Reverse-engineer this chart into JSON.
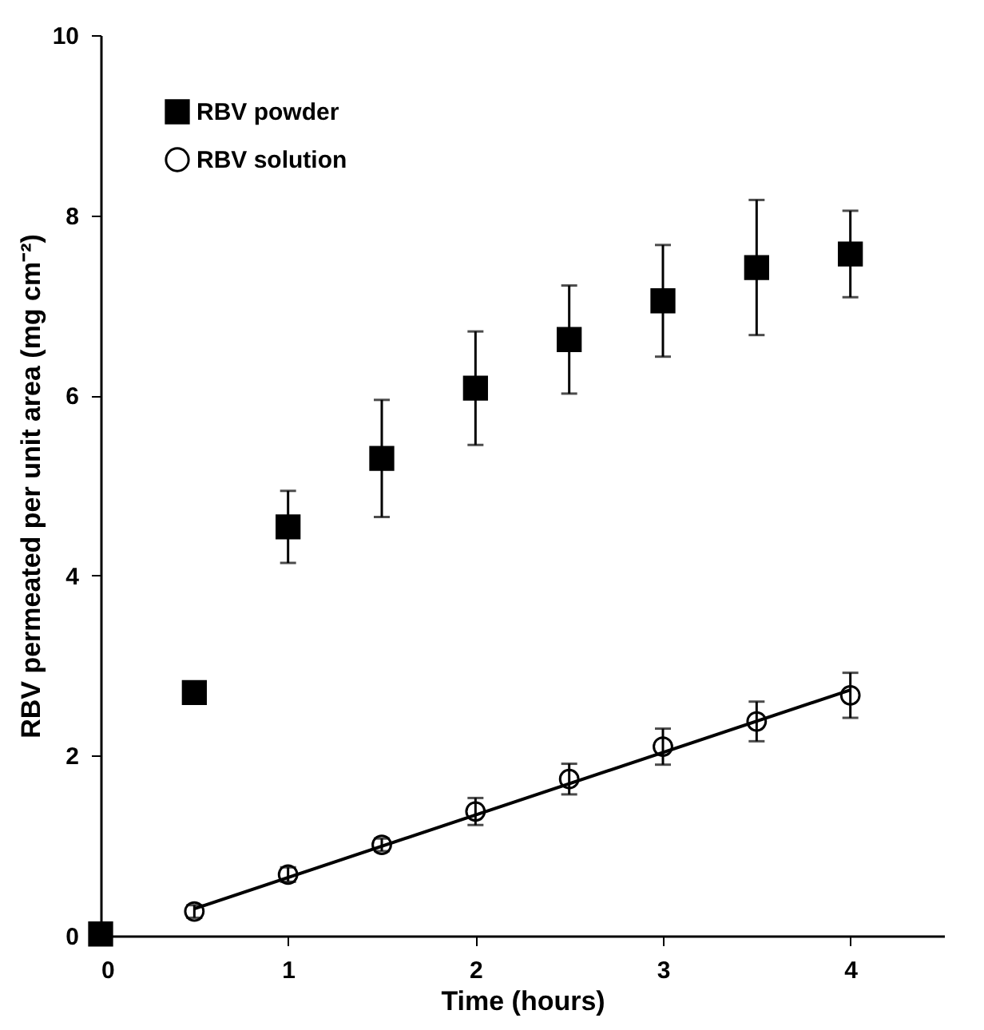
{
  "chart_data": {
    "type": "scatter",
    "xlabel": "Time (hours)",
    "ylabel": "RBV permeated per unit area (mg cm⁻²)",
    "xlim": [
      0,
      4.5
    ],
    "xticks": [
      0,
      1,
      2,
      3,
      4
    ],
    "ylim": [
      0,
      10
    ],
    "yticks": [
      0,
      2,
      4,
      6,
      8,
      10
    ],
    "grid": false,
    "legend": "top left",
    "series": [
      {
        "name": "RBV powder",
        "color": "#000000",
        "marker": "square",
        "x": [
          0,
          0.5,
          1,
          1.5,
          2,
          2.5,
          3,
          3.5,
          4
        ],
        "values": [
          0.02,
          2.7,
          4.54,
          5.3,
          6.08,
          6.62,
          7.05,
          7.42,
          7.57
        ],
        "errors": [
          null,
          null,
          0.4,
          0.65,
          0.63,
          0.6,
          0.62,
          0.75,
          0.48
        ]
      },
      {
        "name": "RBV solution",
        "color": "#000000",
        "marker": "circle",
        "x": [
          0.5,
          1,
          1.5,
          2,
          2.5,
          3,
          3.5,
          4
        ],
        "values": [
          0.27,
          0.68,
          1.01,
          1.38,
          1.74,
          2.1,
          2.38,
          2.67
        ],
        "errors": [
          0.07,
          0.08,
          0.07,
          0.15,
          0.17,
          0.2,
          0.22,
          0.25
        ]
      },
      {
        "type": "line",
        "color": "#000000",
        "marker": "none",
        "line_style": "solid",
        "x": [
          0.5,
          4
        ],
        "values": [
          0.3,
          2.73
        ]
      }
    ]
  }
}
